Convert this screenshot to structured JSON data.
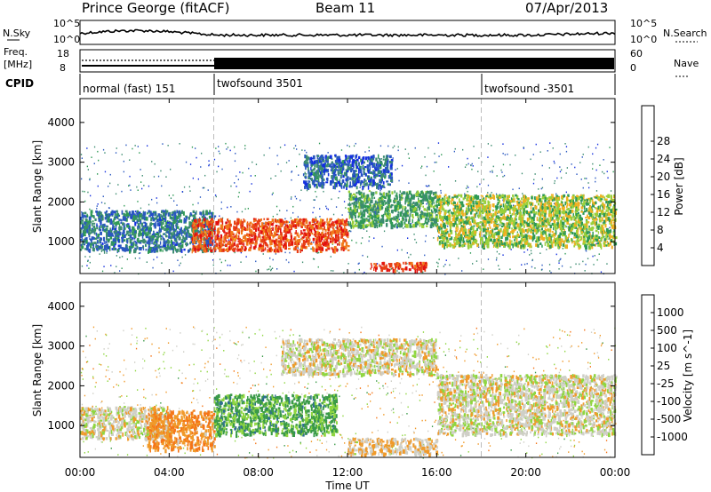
{
  "header": {
    "station": "Prince George (fitACF)",
    "beam": "Beam 11",
    "date": "07/Apr/2013"
  },
  "left_labels": {
    "nsky": "N.Sky",
    "nsky_hi": "10^5",
    "nsky_lo": "10^0",
    "freq": "Freq.",
    "freq_unit": "[MHz]",
    "freq_hi": "18",
    "freq_lo": "8",
    "cpid": "CPID"
  },
  "right_labels": {
    "nsearch": "N.Search",
    "nsearch_hi": "10^5",
    "nsearch_lo": "10^0",
    "nave_hi": "60",
    "nave_lo": "0",
    "nave": "Nave"
  },
  "cpid_segments": [
    {
      "label": "normal (fast) 151",
      "start": "00:00"
    },
    {
      "label": "twofsound 3501",
      "start": "06:00"
    },
    {
      "label": "twofsound -3501",
      "start": "18:00"
    }
  ],
  "chart_data": [
    {
      "type": "heatmap",
      "title": "Power",
      "ylabel": "Slant Range [km]",
      "xlabel": "Time UT",
      "x_ticks": [
        "00:00",
        "04:00",
        "08:00",
        "12:00",
        "16:00",
        "20:00",
        "00:00"
      ],
      "y_ticks": [
        1000,
        2000,
        3000,
        4000
      ],
      "ylim": [
        200,
        4600
      ],
      "colorbar": {
        "label": "Power [dB]",
        "ticks": [
          4,
          8,
          12,
          16,
          20,
          24,
          28
        ],
        "colors": [
          "#1530e0",
          "#2a58c0",
          "#3c8c70",
          "#2f9a55",
          "#9ad03a",
          "#f0b020",
          "#f07a1c",
          "#e84016",
          "#e21010"
        ]
      },
      "features": [
        {
          "region": "00:00-06:00",
          "slant_range_km": [
            800,
            1800
          ],
          "power_db": 8,
          "note": "blue-green band"
        },
        {
          "region": "05:00-12:00",
          "slant_range_km": [
            800,
            1600
          ],
          "power_db": 26,
          "note": "red/orange echoes"
        },
        {
          "region": "13:00-15:30",
          "slant_range_km": [
            300,
            500
          ],
          "power_db": 28
        },
        {
          "region": "12:00-16:00",
          "slant_range_km": [
            1400,
            2300
          ],
          "power_db": 12
        },
        {
          "region": "16:00-24:00",
          "slant_range_km": [
            900,
            2200
          ],
          "power_db": 16,
          "note": "layered bands"
        },
        {
          "region": "10:00-14:00",
          "slant_range_km": [
            2400,
            3200
          ],
          "power_db": 6
        }
      ]
    },
    {
      "type": "heatmap",
      "title": "Velocity",
      "ylabel": "Slant Range [km]",
      "xlabel": "Time UT",
      "x_ticks": [
        "00:00",
        "04:00",
        "08:00",
        "12:00",
        "16:00",
        "20:00",
        "00:00"
      ],
      "y_ticks": [
        1000,
        2000,
        3000,
        4000
      ],
      "ylim": [
        200,
        4600
      ],
      "colorbar": {
        "label": "Velocity [m s^-1]",
        "ticks": [
          1000,
          500,
          100,
          25,
          -25,
          -100,
          -500,
          -1000
        ],
        "colors": [
          "#1538d8",
          "#2f6f8e",
          "#3a9a48",
          "#8fd640",
          "#cfcfc7",
          "#f09a2a",
          "#f57418",
          "#ee3a12",
          "#e01010"
        ]
      },
      "features": [
        {
          "region": "00:00-04:00",
          "slant_range_km": [
            700,
            1500
          ],
          "velocity": 0,
          "note": "ground scatter grey"
        },
        {
          "region": "03:00-06:00",
          "slant_range_km": [
            400,
            1400
          ],
          "velocity": -300,
          "note": "orange"
        },
        {
          "region": "06:00-11:30",
          "slant_range_km": [
            800,
            1800
          ],
          "velocity": 400,
          "note": "green/blue"
        },
        {
          "region": "12:00-16:00",
          "slant_range_km": [
            300,
            700
          ],
          "velocity": -80
        },
        {
          "region": "16:00-24:00",
          "slant_range_km": [
            800,
            2300
          ],
          "velocity": 0,
          "note": "grey ground scatter"
        },
        {
          "region": "09:00-16:00",
          "slant_range_km": [
            2300,
            3200
          ],
          "velocity": 0
        }
      ]
    }
  ],
  "x_axis_title": "Time UT"
}
